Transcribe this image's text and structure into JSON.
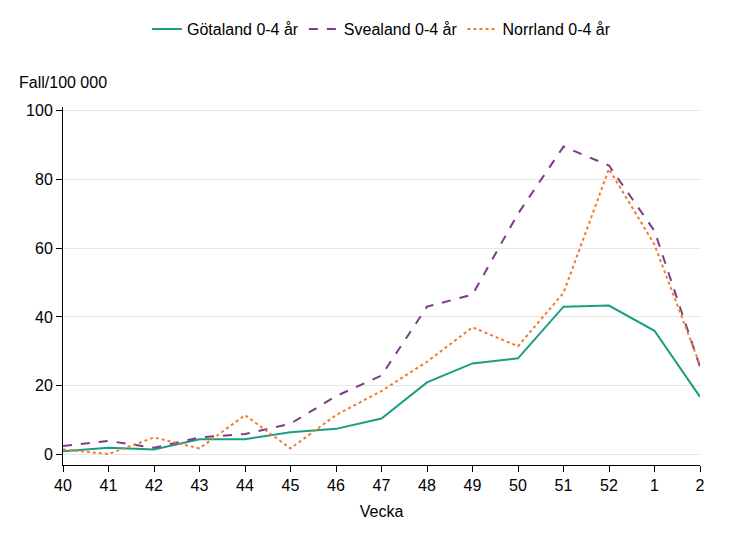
{
  "chart_data": {
    "type": "line",
    "x_label": "Vecka",
    "y_label": "Fall/100 000",
    "categories": [
      "40",
      "41",
      "42",
      "43",
      "44",
      "45",
      "46",
      "47",
      "48",
      "49",
      "50",
      "51",
      "52",
      "1",
      "2"
    ],
    "series": [
      {
        "name": "Götaland 0-4 år",
        "color": "#1a9e82",
        "line_style": "solid",
        "values": [
          1,
          2,
          1.5,
          4.5,
          4.5,
          6.5,
          7.5,
          10.5,
          21,
          26.5,
          28,
          43,
          43.3,
          36,
          16.8
        ]
      },
      {
        "name": "Svealand 0-4 år",
        "color": "#7b3c8a",
        "line_style": "dash",
        "values": [
          2.5,
          4,
          2,
          5,
          6,
          9,
          17,
          23,
          43,
          46.5,
          70,
          89.5,
          84,
          65,
          25.5
        ]
      },
      {
        "name": "Norrland 0-4 år",
        "color": "#f07b2f",
        "line_style": "dot",
        "values": [
          1.5,
          0.2,
          5,
          1.8,
          11.5,
          1.8,
          11.5,
          18.5,
          27,
          37,
          31.5,
          47,
          83,
          61,
          26
        ]
      }
    ],
    "ylim": [
      -3,
      101
    ],
    "yticks": [
      0,
      20,
      40,
      60,
      80,
      100
    ],
    "grid": true,
    "legend": "top"
  }
}
